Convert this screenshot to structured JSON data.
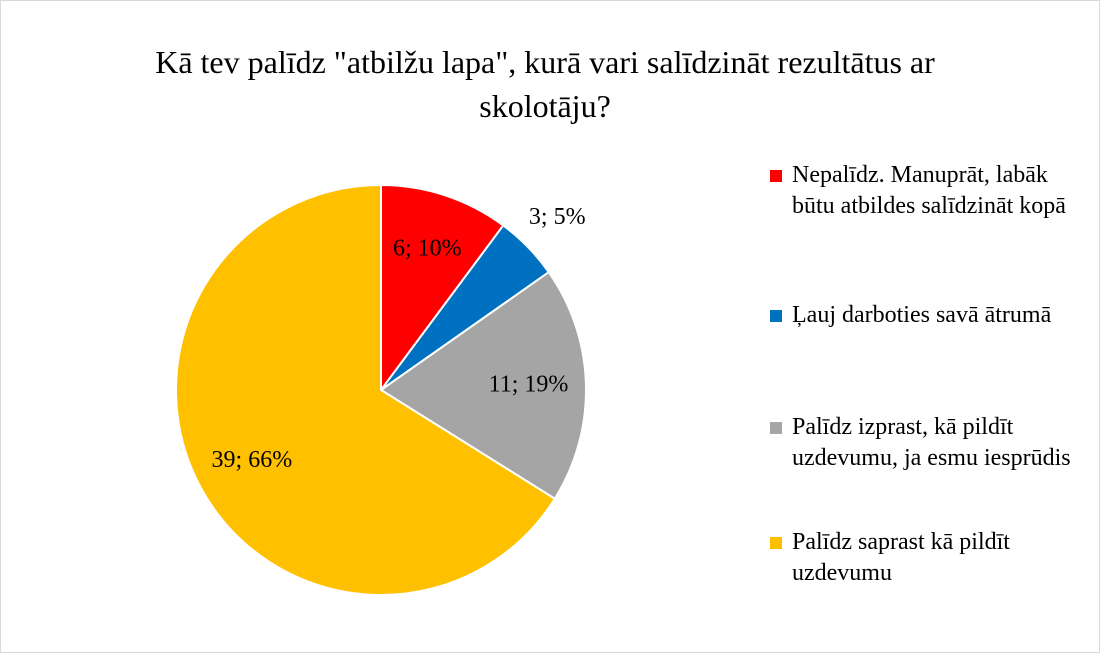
{
  "chart_data": {
    "type": "pie",
    "title": "Kā tev palīdz \"atbilžu lapa\", kurā vari salīdzināt rezultātus ar skolotāju?",
    "categories": [
      "Nepalīdz. Manuprāt, labāk būtu atbildes salīdzināt kopā",
      "Ļauj darboties savā ātrumā",
      "Palīdz izprast, kā pildīt uzdevumu, ja esmu iesprūdis",
      "Palīdz saprast kā pildīt uzdevumu"
    ],
    "values": [
      6,
      3,
      11,
      39
    ],
    "value_labels": [
      "6; 10%",
      "3; 5%",
      "11; 19%",
      "39; 66%"
    ],
    "colors": [
      "#ff0000",
      "#0070c0",
      "#a5a5a5",
      "#ffc000"
    ],
    "legend": "right"
  }
}
